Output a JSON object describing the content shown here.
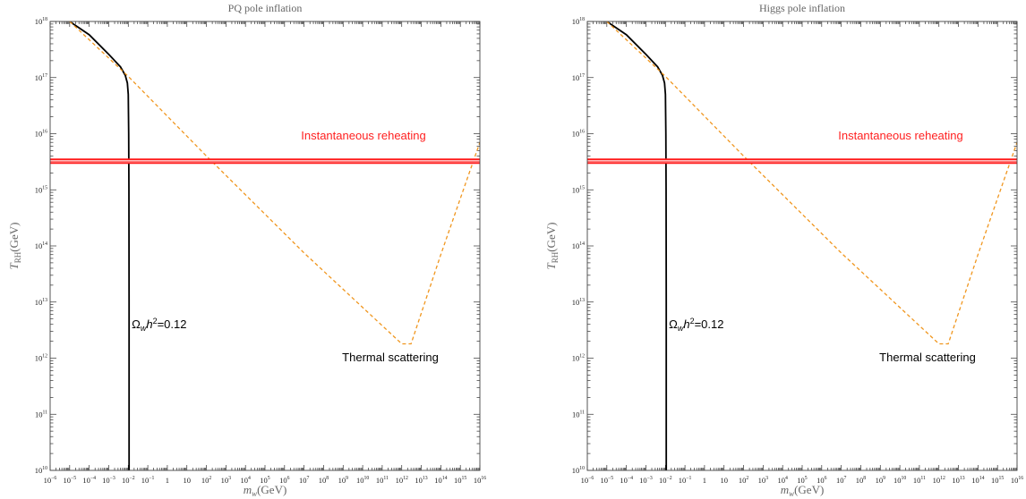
{
  "chart_data": [
    {
      "type": "line",
      "title": "PQ pole inflation",
      "xlabel": {
        "base": "m",
        "sub": "w",
        "unit": "(GeV)"
      },
      "ylabel": {
        "base": "T",
        "sub": "RH",
        "unit": "(GeV)"
      },
      "x_scale": "log",
      "y_scale": "log",
      "xlim": [
        1e-06,
        1e+16
      ],
      "ylim": [
        10000000000.0,
        1e+18
      ],
      "x_ticks": [
        "10^-6",
        "10^-5",
        "10^-4",
        "10^-3",
        "10^-2",
        "10^-1",
        "1",
        "10",
        "10^2",
        "10^3",
        "10^4",
        "10^5",
        "10^6",
        "10^7",
        "10^8",
        "10^9",
        "10^10",
        "10^11",
        "10^12",
        "10^13",
        "10^14",
        "10^15",
        "10^16"
      ],
      "y_ticks": [
        "10^10",
        "10^11",
        "10^12",
        "10^13",
        "10^14",
        "10^15",
        "10^16",
        "10^17",
        "10^18"
      ],
      "series": [
        {
          "style": "solid",
          "color": "#000000",
          "points": [
            [
              1e-05,
              1e+18
            ],
            [
              0.0001,
              5.8e+17
            ],
            [
              0.001,
              2.6e+17
            ],
            [
              0.004,
              1.55e+17
            ],
            [
              0.007,
              1.1e+17
            ],
            [
              0.009,
              8e+16
            ],
            [
              0.01,
              5e+16
            ],
            [
              0.0105,
              1e+16
            ],
            [
              0.0108,
              1000000000000000.0
            ],
            [
              0.011,
              10000000000000.0
            ],
            [
              0.011,
              10000000000.0
            ]
          ]
        },
        {
          "style": "dashed",
          "color": "#f0961e",
          "points": [
            [
              1e-05,
              1e+18
            ],
            [
              0.01,
              1.05e+17
            ],
            [
              100.0,
              4000000000000000.0
            ],
            [
              10000000.0,
              75000000000000.0
            ],
            [
              1000000000000.0,
              1800000000000.0
            ],
            [
              3000000000000.0,
              1800000000000.0
            ],
            [
              100000000000000.0,
              70000000000000.0
            ],
            [
              1e+16,
              7000000000000000.0
            ]
          ]
        },
        {
          "style": "band",
          "color": "#ff1a1a",
          "y_range": [
            3000000000000000.0,
            3500000000000000.0
          ]
        }
      ],
      "annotations": {
        "reheating": "Instantaneous reheating",
        "relic": {
          "omega": "Ω",
          "sub": "w",
          "h": "h",
          "sup": "2",
          "value": "=0.12"
        },
        "thermal": "Thermal scattering"
      }
    },
    {
      "type": "line",
      "title": "Higgs pole inflation",
      "xlabel": {
        "base": "m",
        "sub": "w",
        "unit": "(GeV)"
      },
      "ylabel": {
        "base": "T",
        "sub": "RH",
        "unit": "(GeV)"
      },
      "x_scale": "log",
      "y_scale": "log",
      "xlim": [
        1e-06,
        1e+16
      ],
      "ylim": [
        10000000000.0,
        1e+18
      ],
      "x_ticks": [
        "10^-6",
        "10^-5",
        "10^-4",
        "10^-3",
        "10^-2",
        "10^-1",
        "1",
        "10",
        "10^2",
        "10^3",
        "10^4",
        "10^5",
        "10^6",
        "10^7",
        "10^8",
        "10^9",
        "10^10",
        "10^11",
        "10^12",
        "10^13",
        "10^14",
        "10^15",
        "10^16"
      ],
      "y_ticks": [
        "10^10",
        "10^11",
        "10^12",
        "10^13",
        "10^14",
        "10^15",
        "10^16",
        "10^17",
        "10^18"
      ],
      "series": [
        {
          "style": "solid",
          "color": "#000000",
          "points": [
            [
              1e-05,
              1e+18
            ],
            [
              0.0001,
              5.8e+17
            ],
            [
              0.001,
              2.6e+17
            ],
            [
              0.004,
              1.55e+17
            ],
            [
              0.007,
              1.1e+17
            ],
            [
              0.009,
              8e+16
            ],
            [
              0.01,
              5e+16
            ],
            [
              0.0105,
              1e+16
            ],
            [
              0.0108,
              1000000000000000.0
            ],
            [
              0.011,
              10000000000000.0
            ],
            [
              0.011,
              10000000000.0
            ]
          ]
        },
        {
          "style": "dashed",
          "color": "#f0961e",
          "points": [
            [
              1e-05,
              1e+18
            ],
            [
              0.01,
              1.05e+17
            ],
            [
              100.0,
              4000000000000000.0
            ],
            [
              10000000.0,
              75000000000000.0
            ],
            [
              1000000000000.0,
              1800000000000.0
            ],
            [
              3000000000000.0,
              1800000000000.0
            ],
            [
              100000000000000.0,
              70000000000000.0
            ],
            [
              1e+16,
              7000000000000000.0
            ]
          ]
        },
        {
          "style": "band",
          "color": "#ff1a1a",
          "y_range": [
            3000000000000000.0,
            3500000000000000.0
          ]
        }
      ],
      "annotations": {
        "reheating": "Instantaneous reheating",
        "relic": {
          "omega": "Ω",
          "sub": "w",
          "h": "h",
          "sup": "2",
          "value": "=0.12"
        },
        "thermal": "Thermal scattering"
      }
    }
  ]
}
